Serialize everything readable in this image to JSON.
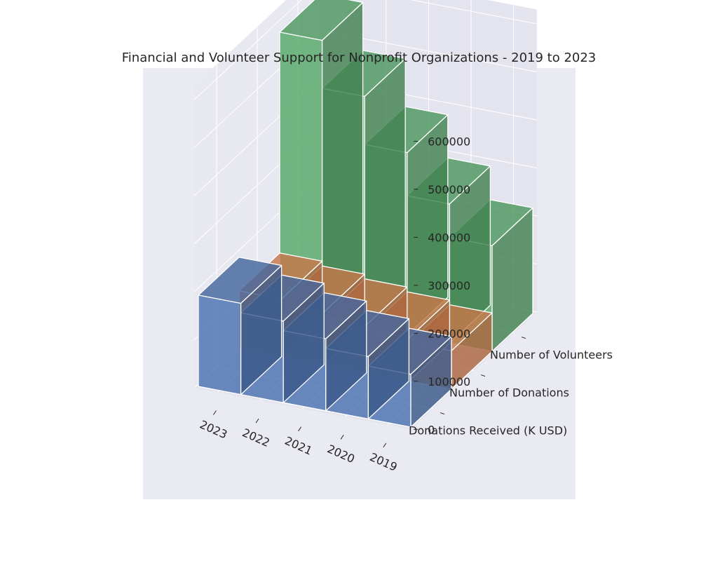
{
  "chart_data": {
    "type": "bar3d",
    "title": "Financial and Volunteer Support for Nonprofit Organizations - 2019 to 2023",
    "x_categories": [
      "2023",
      "2022",
      "2021",
      "2020",
      "2019"
    ],
    "y_categories": [
      "Donations Received (K USD)",
      "Number of Donations",
      "Number of Volunteers"
    ],
    "zlim": [
      0,
      600000
    ],
    "z_ticks": [
      "0",
      "100000",
      "200000",
      "300000",
      "400000",
      "500000",
      "600000"
    ],
    "series": [
      {
        "name": "Donations Received (K USD)",
        "color": "#4c72b0",
        "values": [
          190000,
          170000,
          150000,
          130000,
          110000
        ]
      },
      {
        "name": "Number of Donations",
        "color": "#dd8452",
        "values": [
          120000,
          110000,
          100000,
          90000,
          80000
        ]
      },
      {
        "name": "Number of Volunteers",
        "color": "#55a868",
        "values": [
          580000,
          480000,
          380000,
          290000,
          220000
        ]
      }
    ],
    "grid": true,
    "background": "#eaeaf2"
  }
}
